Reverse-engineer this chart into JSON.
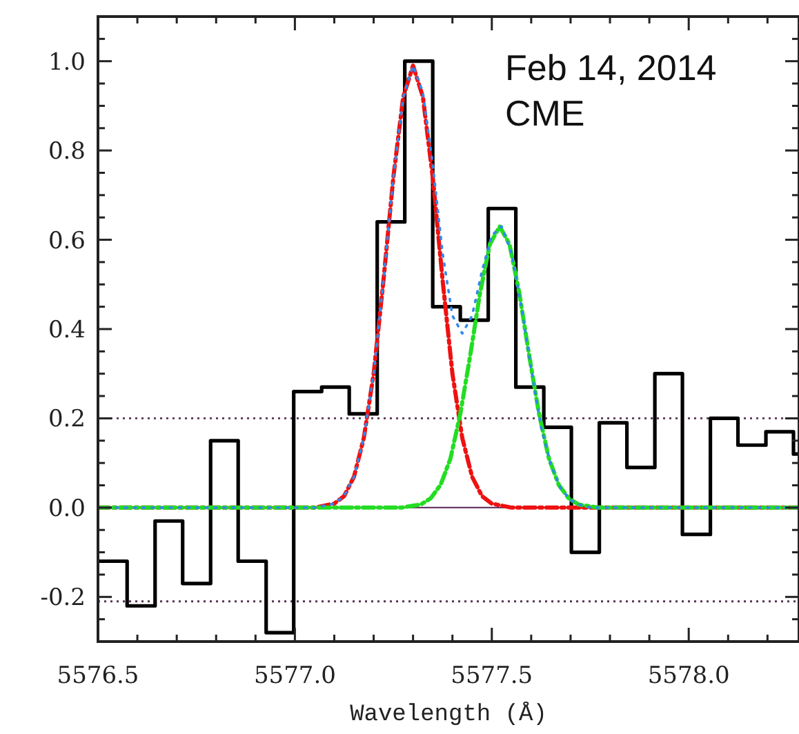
{
  "chart_data": {
    "type": "line",
    "xlabel": "Wavelength (Å)",
    "line_style": "dashed",
    "marker": "none",
    "xlim": [
      5576.5,
      5578.28
    ],
    "ylim": [
      -0.3,
      1.1
    ],
    "xticks": [
      5576.5,
      {
        "value": 5576.6,
        "label": null
      },
      {
        "value": 5576.7,
        "label": null
      },
      {
        "value": 5576.8,
        "label": null
      },
      {
        "value": 5576.9,
        "label": null
      },
      {
        "value": 5577.0,
        "label": "5577.0"
      },
      {
        "value": 5577.1,
        "label": null
      },
      {
        "value": 5577.2,
        "label": null
      },
      {
        "value": 5577.3,
        "label": null
      },
      {
        "value": 5577.4,
        "label": null
      },
      5577.5,
      {
        "value": 5577.6,
        "label": null
      },
      {
        "value": 5577.7,
        "label": null
      },
      {
        "value": 5577.8,
        "label": null
      },
      {
        "value": 5577.9,
        "label": null
      },
      {
        "value": 5578.0,
        "label": "5578.0"
      },
      {
        "value": 5578.1,
        "label": null
      },
      {
        "value": 5578.2,
        "label": null
      }
    ],
    "yticks": [
      {
        "value": -0.25,
        "label": null
      },
      -0.2,
      {
        "value": -0.15,
        "label": null
      },
      {
        "value": -0.1,
        "label": null
      },
      {
        "value": -0.05,
        "label": null
      },
      {
        "value": 0,
        "label": "0.0"
      },
      {
        "value": 0.05,
        "label": null
      },
      {
        "value": 0.1,
        "label": null
      },
      {
        "value": 0.15,
        "label": null
      },
      0.2,
      {
        "value": 0.25,
        "label": null
      },
      {
        "value": 0.3,
        "label": null
      },
      {
        "value": 0.35,
        "label": null
      },
      0.4,
      {
        "value": 0.45,
        "label": null
      },
      {
        "value": 0.5,
        "label": null
      },
      {
        "value": 0.55,
        "label": null
      },
      0.6,
      {
        "value": 0.65,
        "label": null
      },
      {
        "value": 0.7,
        "label": null
      },
      {
        "value": 0.75,
        "label": null
      },
      0.8,
      {
        "value": 0.85,
        "label": null
      },
      {
        "value": 0.9,
        "label": null
      },
      {
        "value": 0.95,
        "label": null
      },
      {
        "value": 1.0,
        "label": "1.0"
      },
      {
        "value": 1.05,
        "label": null
      }
    ],
    "ref_lines": [
      {
        "axis": "y",
        "value": 0,
        "color": "#552255",
        "line_style": "solid"
      },
      {
        "axis": "y",
        "value": 0.2,
        "color": "#553355",
        "line_style": "dotted"
      },
      {
        "axis": "y",
        "value": -0.21,
        "color": "#553355",
        "line_style": "dotted"
      }
    ],
    "annotations": [
      "Feb 14, 2014",
      "CME"
    ],
    "series": [
      {
        "type": "histogram",
        "color": "#000000",
        "bins": [
          5576.503,
          5576.574,
          5576.645,
          5576.715,
          5576.786,
          5576.856,
          5576.927,
          5576.997,
          5577.068,
          5577.138,
          5577.209,
          5577.279,
          5577.35,
          5577.42,
          5577.491,
          5577.561,
          5577.632,
          5577.702,
          5577.773,
          5577.843,
          5577.914,
          5577.984,
          5578.055,
          5578.125,
          5578.196,
          5578.266,
          5578.28
        ],
        "values": [
          -0.12,
          -0.22,
          -0.03,
          -0.17,
          0.15,
          -0.12,
          -0.28,
          0.26,
          0.27,
          0.21,
          0.64,
          1.0,
          0.45,
          0.42,
          0.67,
          0.27,
          0.18,
          -0.1,
          0.19,
          0.09,
          0.3,
          -0.06,
          0.2,
          0.14,
          0.17,
          0.12
        ]
      },
      {
        "color": "#ee1111",
        "x": [
          5576.5,
          5577.05,
          5577.1,
          5577.125,
          5577.15,
          5577.175,
          5577.2,
          5577.225,
          5577.25,
          5577.275,
          5577.3,
          5577.325,
          5577.35,
          5577.375,
          5577.4,
          5577.425,
          5577.45,
          5577.475,
          5577.5,
          5577.55,
          5578.28
        ],
        "values": [
          0,
          0,
          0.009,
          0.026,
          0.069,
          0.156,
          0.3,
          0.51,
          0.74,
          0.92,
          0.99,
          0.92,
          0.74,
          0.51,
          0.3,
          0.156,
          0.069,
          0.026,
          0.009,
          0,
          0
        ]
      },
      {
        "color": "#22dd22",
        "x": [
          5576.5,
          5577.27,
          5577.32,
          5577.345,
          5577.37,
          5577.395,
          5577.42,
          5577.445,
          5577.47,
          5577.495,
          5577.52,
          5577.545,
          5577.57,
          5577.595,
          5577.62,
          5577.645,
          5577.67,
          5577.695,
          5577.72,
          5577.77,
          5578.28
        ],
        "values": [
          0,
          0,
          0.007,
          0.021,
          0.051,
          0.11,
          0.21,
          0.34,
          0.48,
          0.59,
          0.63,
          0.59,
          0.48,
          0.34,
          0.21,
          0.11,
          0.051,
          0.021,
          0.007,
          0,
          0
        ]
      },
      {
        "color": "#3388ee",
        "line_style": "dotted",
        "x": [
          5576.5,
          5577.05,
          5577.1,
          5577.125,
          5577.15,
          5577.175,
          5577.2,
          5577.225,
          5577.25,
          5577.275,
          5577.3,
          5577.325,
          5577.35,
          5577.375,
          5577.4,
          5577.425,
          5577.45,
          5577.475,
          5577.5,
          5577.525,
          5577.55,
          5577.575,
          5577.6,
          5577.625,
          5577.65,
          5577.675,
          5577.7,
          5577.725,
          5577.75,
          5578.28
        ],
        "values": [
          0,
          0,
          0.009,
          0.026,
          0.069,
          0.156,
          0.3,
          0.51,
          0.74,
          0.92,
          0.99,
          0.93,
          0.77,
          0.57,
          0.43,
          0.39,
          0.43,
          0.53,
          0.61,
          0.63,
          0.57,
          0.45,
          0.31,
          0.18,
          0.096,
          0.043,
          0.017,
          0.006,
          0,
          0
        ]
      }
    ]
  }
}
